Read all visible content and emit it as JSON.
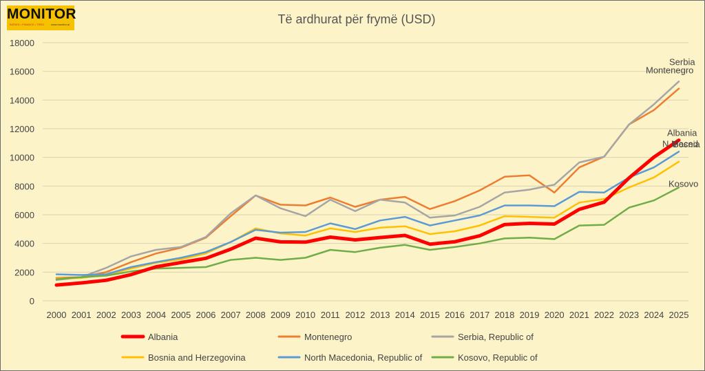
{
  "logo": {
    "name": "MONITOR",
    "tagline": "BIZNES • FINANCE • TREG",
    "url": "www.monitor.al"
  },
  "chart_data": {
    "type": "line",
    "title": "Të ardhurat për frymë (USD)",
    "xlabel": "",
    "ylabel": "",
    "ylim": [
      0,
      18000
    ],
    "yticks": [
      0,
      2000,
      4000,
      6000,
      8000,
      10000,
      12000,
      14000,
      16000,
      18000
    ],
    "grid": true,
    "legend_position": "bottom",
    "categories": [
      "2000",
      "2001",
      "2002",
      "2003",
      "2004",
      "2005",
      "2006",
      "2007",
      "2008",
      "2009",
      "2010",
      "2011",
      "2012",
      "2013",
      "2014",
      "2015",
      "2016",
      "2017",
      "2018",
      "2019",
      "2020",
      "2021",
      "2022",
      "2023",
      "2024",
      "2025"
    ],
    "series": [
      {
        "name": "Albania",
        "end_label": "Albania",
        "color": "#ff0000",
        "width": 5,
        "values": [
          1100,
          1250,
          1430,
          1830,
          2370,
          2670,
          2960,
          3600,
          4370,
          4110,
          4090,
          4440,
          4250,
          4410,
          4560,
          3950,
          4120,
          4530,
          5320,
          5400,
          5350,
          6380,
          6880,
          8570,
          10020,
          11200
        ]
      },
      {
        "name": "Montenegro",
        "end_label": "Montenegro",
        "color": "#ed7d31",
        "width": 2.5,
        "values": [
          1600,
          1650,
          2000,
          2700,
          3300,
          3700,
          4400,
          5900,
          7350,
          6700,
          6650,
          7200,
          6550,
          7050,
          7250,
          6400,
          6950,
          7700,
          8650,
          8750,
          7550,
          9300,
          10050,
          12300,
          13300,
          14800
        ]
      },
      {
        "name": "Serbia, Republic of",
        "end_label": "Serbia",
        "color": "#a5a5a5",
        "width": 2.5,
        "values": [
          1450,
          1650,
          2300,
          3100,
          3550,
          3750,
          4450,
          6100,
          7350,
          6450,
          5900,
          7050,
          6250,
          7050,
          6850,
          5800,
          5950,
          6550,
          7550,
          7750,
          8100,
          9650,
          10050,
          12300,
          13700,
          15300
        ]
      },
      {
        "name": "Bosnia and Herzegovina",
        "end_label": "Bosnia",
        "color": "#ffc000",
        "width": 2.5,
        "values": [
          1550,
          1600,
          1800,
          2250,
          2650,
          2900,
          3300,
          4100,
          5050,
          4700,
          4550,
          5050,
          4800,
          5100,
          5200,
          4650,
          4850,
          5250,
          5900,
          5850,
          5800,
          6850,
          7100,
          7900,
          8600,
          9700
        ]
      },
      {
        "name": "North Macedonia, Republic of",
        "end_label": "N.Maced",
        "color": "#5b9bd5",
        "width": 2.5,
        "values": [
          1850,
          1800,
          1850,
          2350,
          2700,
          3000,
          3400,
          4100,
          4950,
          4750,
          4800,
          5400,
          5000,
          5600,
          5850,
          5250,
          5600,
          5950,
          6650,
          6650,
          6600,
          7600,
          7550,
          8600,
          9300,
          10400
        ]
      },
      {
        "name": "Kosovo, Republic of",
        "end_label": "Kosovo",
        "color": "#70ad47",
        "width": 2.5,
        "values": [
          1500,
          1650,
          1750,
          2050,
          2250,
          2300,
          2350,
          2850,
          3000,
          2850,
          3000,
          3550,
          3400,
          3700,
          3900,
          3550,
          3750,
          4000,
          4350,
          4400,
          4300,
          5250,
          5300,
          6500,
          7000,
          7900
        ]
      }
    ]
  }
}
